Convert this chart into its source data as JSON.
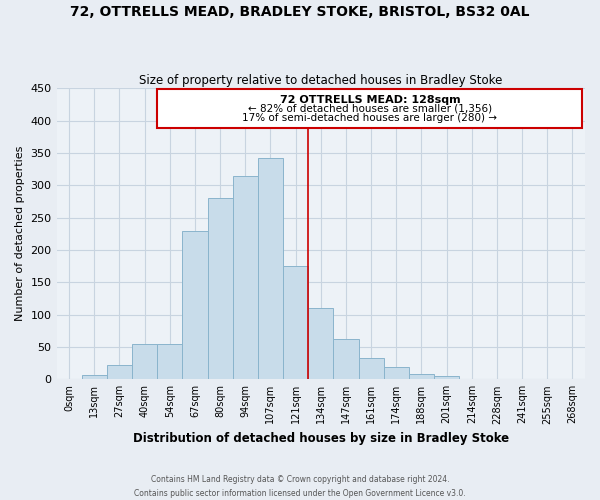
{
  "title": "72, OTTRELLS MEAD, BRADLEY STOKE, BRISTOL, BS32 0AL",
  "subtitle": "Size of property relative to detached houses in Bradley Stoke",
  "xlabel": "Distribution of detached houses by size in Bradley Stoke",
  "ylabel": "Number of detached properties",
  "footer_line1": "Contains HM Land Registry data © Crown copyright and database right 2024.",
  "footer_line2": "Contains public sector information licensed under the Open Government Licence v3.0.",
  "bar_labels": [
    "0sqm",
    "13sqm",
    "27sqm",
    "40sqm",
    "54sqm",
    "67sqm",
    "80sqm",
    "94sqm",
    "107sqm",
    "121sqm",
    "134sqm",
    "147sqm",
    "161sqm",
    "174sqm",
    "188sqm",
    "201sqm",
    "214sqm",
    "228sqm",
    "241sqm",
    "255sqm",
    "268sqm"
  ],
  "bar_heights": [
    0,
    7,
    22,
    55,
    55,
    230,
    280,
    315,
    342,
    175,
    110,
    63,
    33,
    19,
    8,
    5,
    0,
    0,
    0,
    0,
    0
  ],
  "bar_color": "#c8dcea",
  "bar_edge_color": "#8ab4cc",
  "vline_x_idx": 9.5,
  "vline_color": "#cc0000",
  "annotation_title": "72 OTTRELLS MEAD: 128sqm",
  "annotation_line1": "← 82% of detached houses are smaller (1,356)",
  "annotation_line2": "17% of semi-detached houses are larger (280) →",
  "annotation_box_color": "#ffffff",
  "annotation_box_edge": "#cc0000",
  "ylim": [
    0,
    450
  ],
  "yticks": [
    0,
    50,
    100,
    150,
    200,
    250,
    300,
    350,
    400,
    450
  ],
  "bg_color": "#e8edf3",
  "plot_bg_color": "#edf2f7",
  "grid_color": "#c8d4e0"
}
